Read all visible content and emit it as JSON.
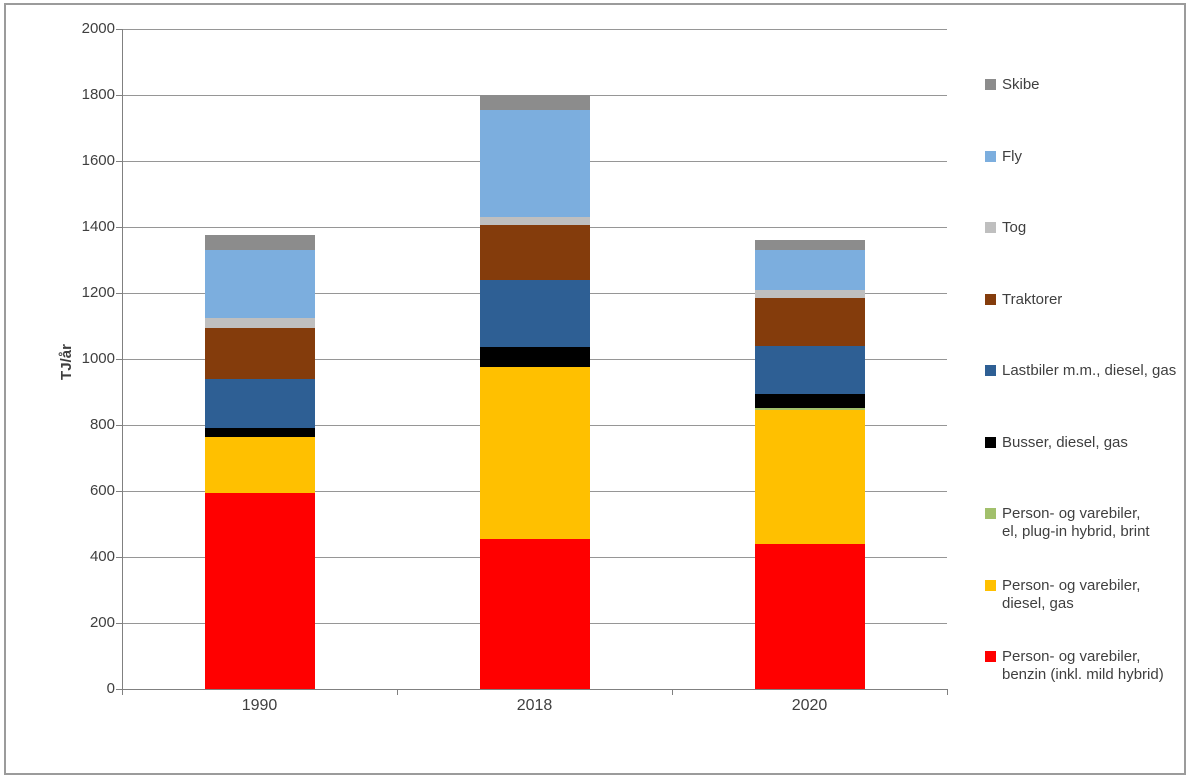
{
  "page": {
    "background": "#ffffff",
    "border_color": "#9b9b9b"
  },
  "colors": {
    "gridline": "#969696",
    "axis": "#808080",
    "text": "#3f3f3f"
  },
  "chart_data": {
    "type": "bar",
    "stacked": true,
    "title": "",
    "xlabel": "",
    "ylabel": "TJ/år",
    "categories": [
      "1990",
      "2018",
      "2020"
    ],
    "ylim": [
      0,
      2000
    ],
    "ytick_step": 200,
    "ytick_labels": [
      "0",
      "200",
      "400",
      "600",
      "800",
      "1000",
      "1200",
      "1400",
      "1600",
      "1800",
      "2000"
    ],
    "grid": true,
    "legend_position": "right",
    "series": [
      {
        "key": "person-varebiler-benzin",
        "name": "Person- og varebiler,\nbenzin (inkl. mild hybrid)",
        "color": "#ff0000",
        "values": [
          595,
          455,
          440
        ]
      },
      {
        "key": "person-varebiler-diesel",
        "name": "Person- og varebiler,\ndiesel, gas",
        "color": "#ffc000",
        "values": [
          170,
          520,
          405
        ]
      },
      {
        "key": "person-varebiler-el",
        "name": "Person- og varebiler,\nel, plug-in hybrid, brint",
        "color": "#a2c06c",
        "values": [
          0,
          0,
          8
        ]
      },
      {
        "key": "busser",
        "name": "Busser, diesel, gas",
        "color": "#000000",
        "values": [
          25,
          60,
          42
        ]
      },
      {
        "key": "lastbiler",
        "name": "Lastbiler m.m., diesel, gas",
        "color": "#2e5f94",
        "values": [
          150,
          205,
          145
        ]
      },
      {
        "key": "traktorer",
        "name": "Traktorer",
        "color": "#843c0c",
        "values": [
          155,
          165,
          145
        ]
      },
      {
        "key": "tog",
        "name": "Tog",
        "color": "#bfbfbf",
        "values": [
          30,
          25,
          25
        ]
      },
      {
        "key": "fly",
        "name": "Fly",
        "color": "#7caede",
        "values": [
          205,
          325,
          120
        ]
      },
      {
        "key": "skibe",
        "name": "Skibe",
        "color": "#8c8c8c",
        "values": [
          45,
          45,
          30
        ]
      }
    ],
    "totals": [
      1375,
      1800,
      1360
    ]
  }
}
